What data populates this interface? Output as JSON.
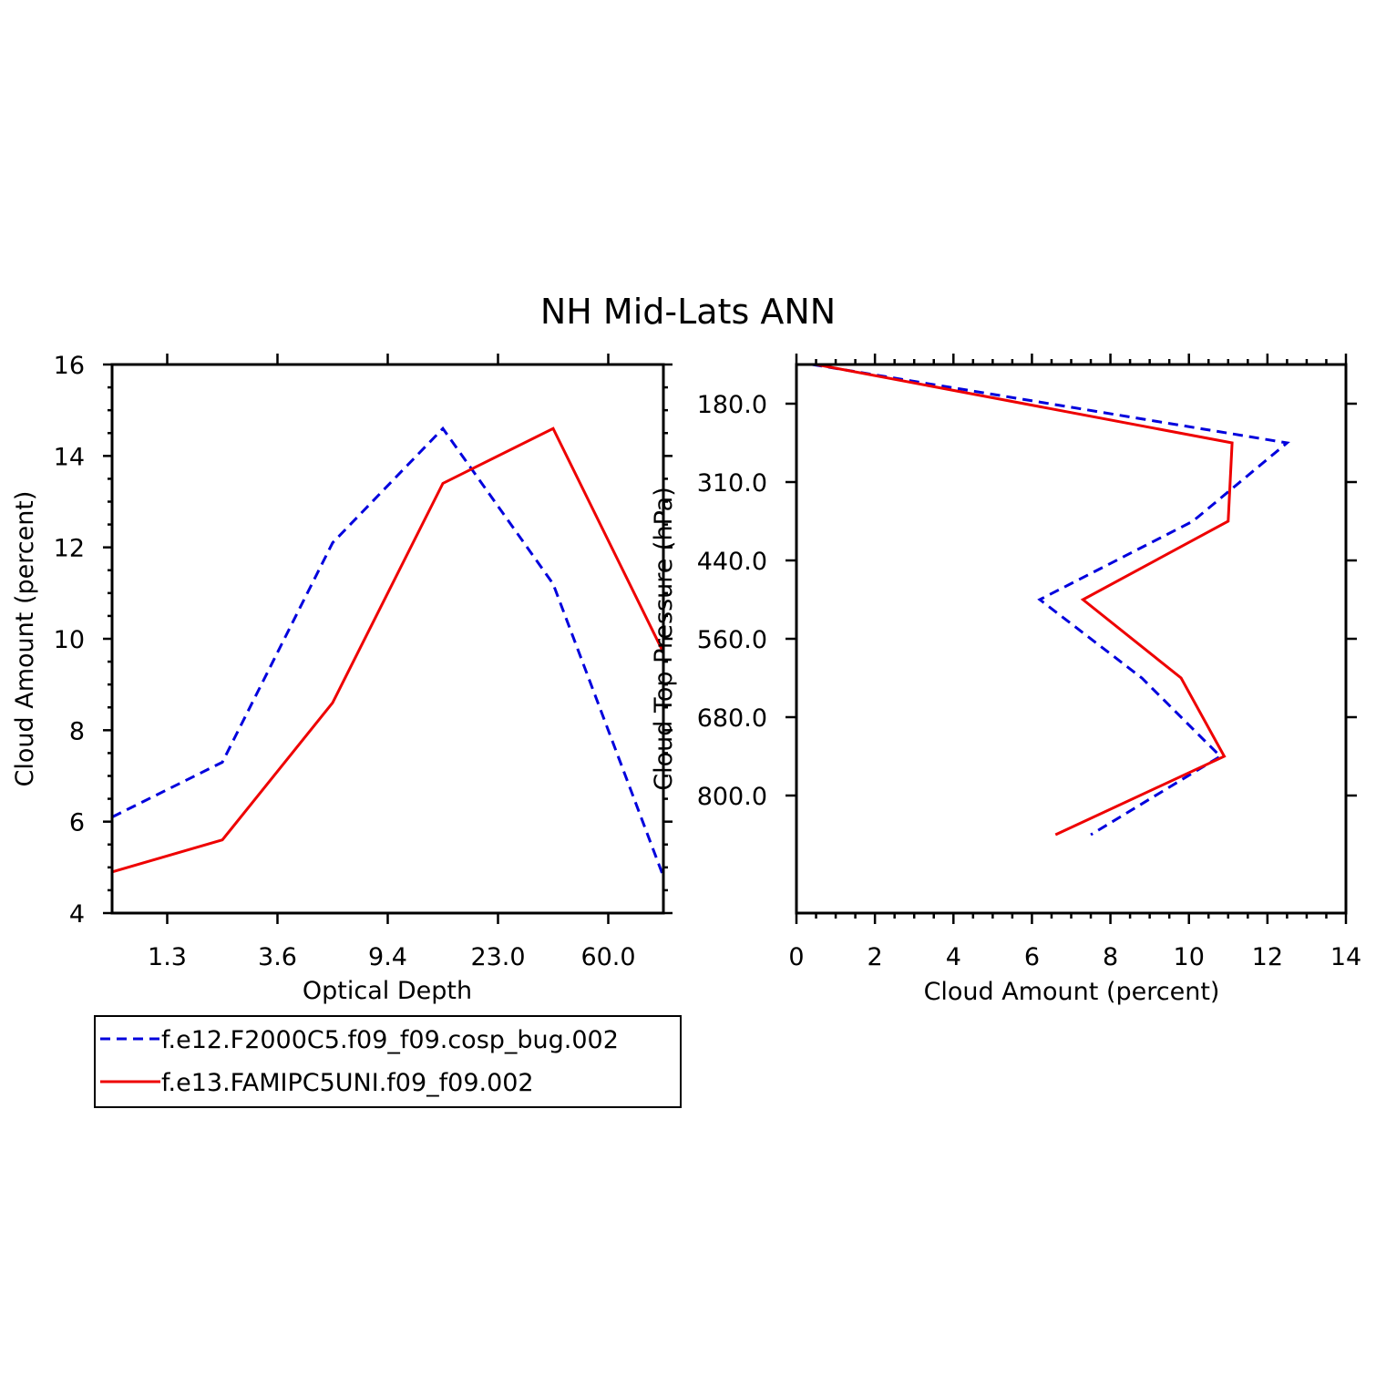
{
  "title": "NH Mid-Lats ANN",
  "colors": {
    "series1": "#0000dd",
    "series2": "#ee0000",
    "axis": "#000000"
  },
  "chart_data": [
    {
      "type": "line",
      "xlabel": "Optical Depth",
      "ylabel": "Cloud Amount (percent)",
      "x_tick_labels": [
        "1.3",
        "3.6",
        "9.4",
        "23.0",
        "60.0"
      ],
      "y_tick_labels": [
        "4",
        "6",
        "8",
        "10",
        "12",
        "14",
        "16"
      ],
      "ylim": [
        4,
        16
      ],
      "series": [
        {
          "name": "f.e12.F2000C5.f09_f09.cosp_bug.002",
          "style": "dashed",
          "values": [
            6.1,
            7.3,
            12.1,
            14.6,
            11.2,
            4.8
          ]
        },
        {
          "name": "f.e13.FAMIPC5UNI.f09_f09.002",
          "style": "solid",
          "values": [
            4.9,
            5.6,
            8.6,
            13.4,
            14.6,
            9.7
          ]
        }
      ]
    },
    {
      "type": "line",
      "orientation": "vertical-profile",
      "xlabel": "Cloud Amount (percent)",
      "ylabel": "Cloud Top Pressure (hPa)",
      "x_tick_labels": [
        "0",
        "2",
        "4",
        "6",
        "8",
        "10",
        "12",
        "14"
      ],
      "y_tick_labels": [
        "180.0",
        "310.0",
        "440.0",
        "560.0",
        "680.0",
        "800.0"
      ],
      "xlim": [
        0,
        14
      ],
      "series": [
        {
          "name": "f.e12.F2000C5.f09_f09.cosp_bug.002",
          "style": "dashed",
          "values": [
            0.4,
            12.5,
            10.1,
            6.2,
            8.8,
            10.8,
            7.5
          ]
        },
        {
          "name": "f.e13.FAMIPC5UNI.f09_f09.002",
          "style": "solid",
          "values": [
            0.5,
            11.1,
            11.0,
            7.3,
            9.8,
            10.9,
            6.6
          ]
        }
      ]
    }
  ],
  "legend": {
    "items": [
      {
        "label": "f.e12.F2000C5.f09_f09.cosp_bug.002",
        "style": "dashed"
      },
      {
        "label": "f.e13.FAMIPC5UNI.f09_f09.002",
        "style": "solid"
      }
    ]
  }
}
